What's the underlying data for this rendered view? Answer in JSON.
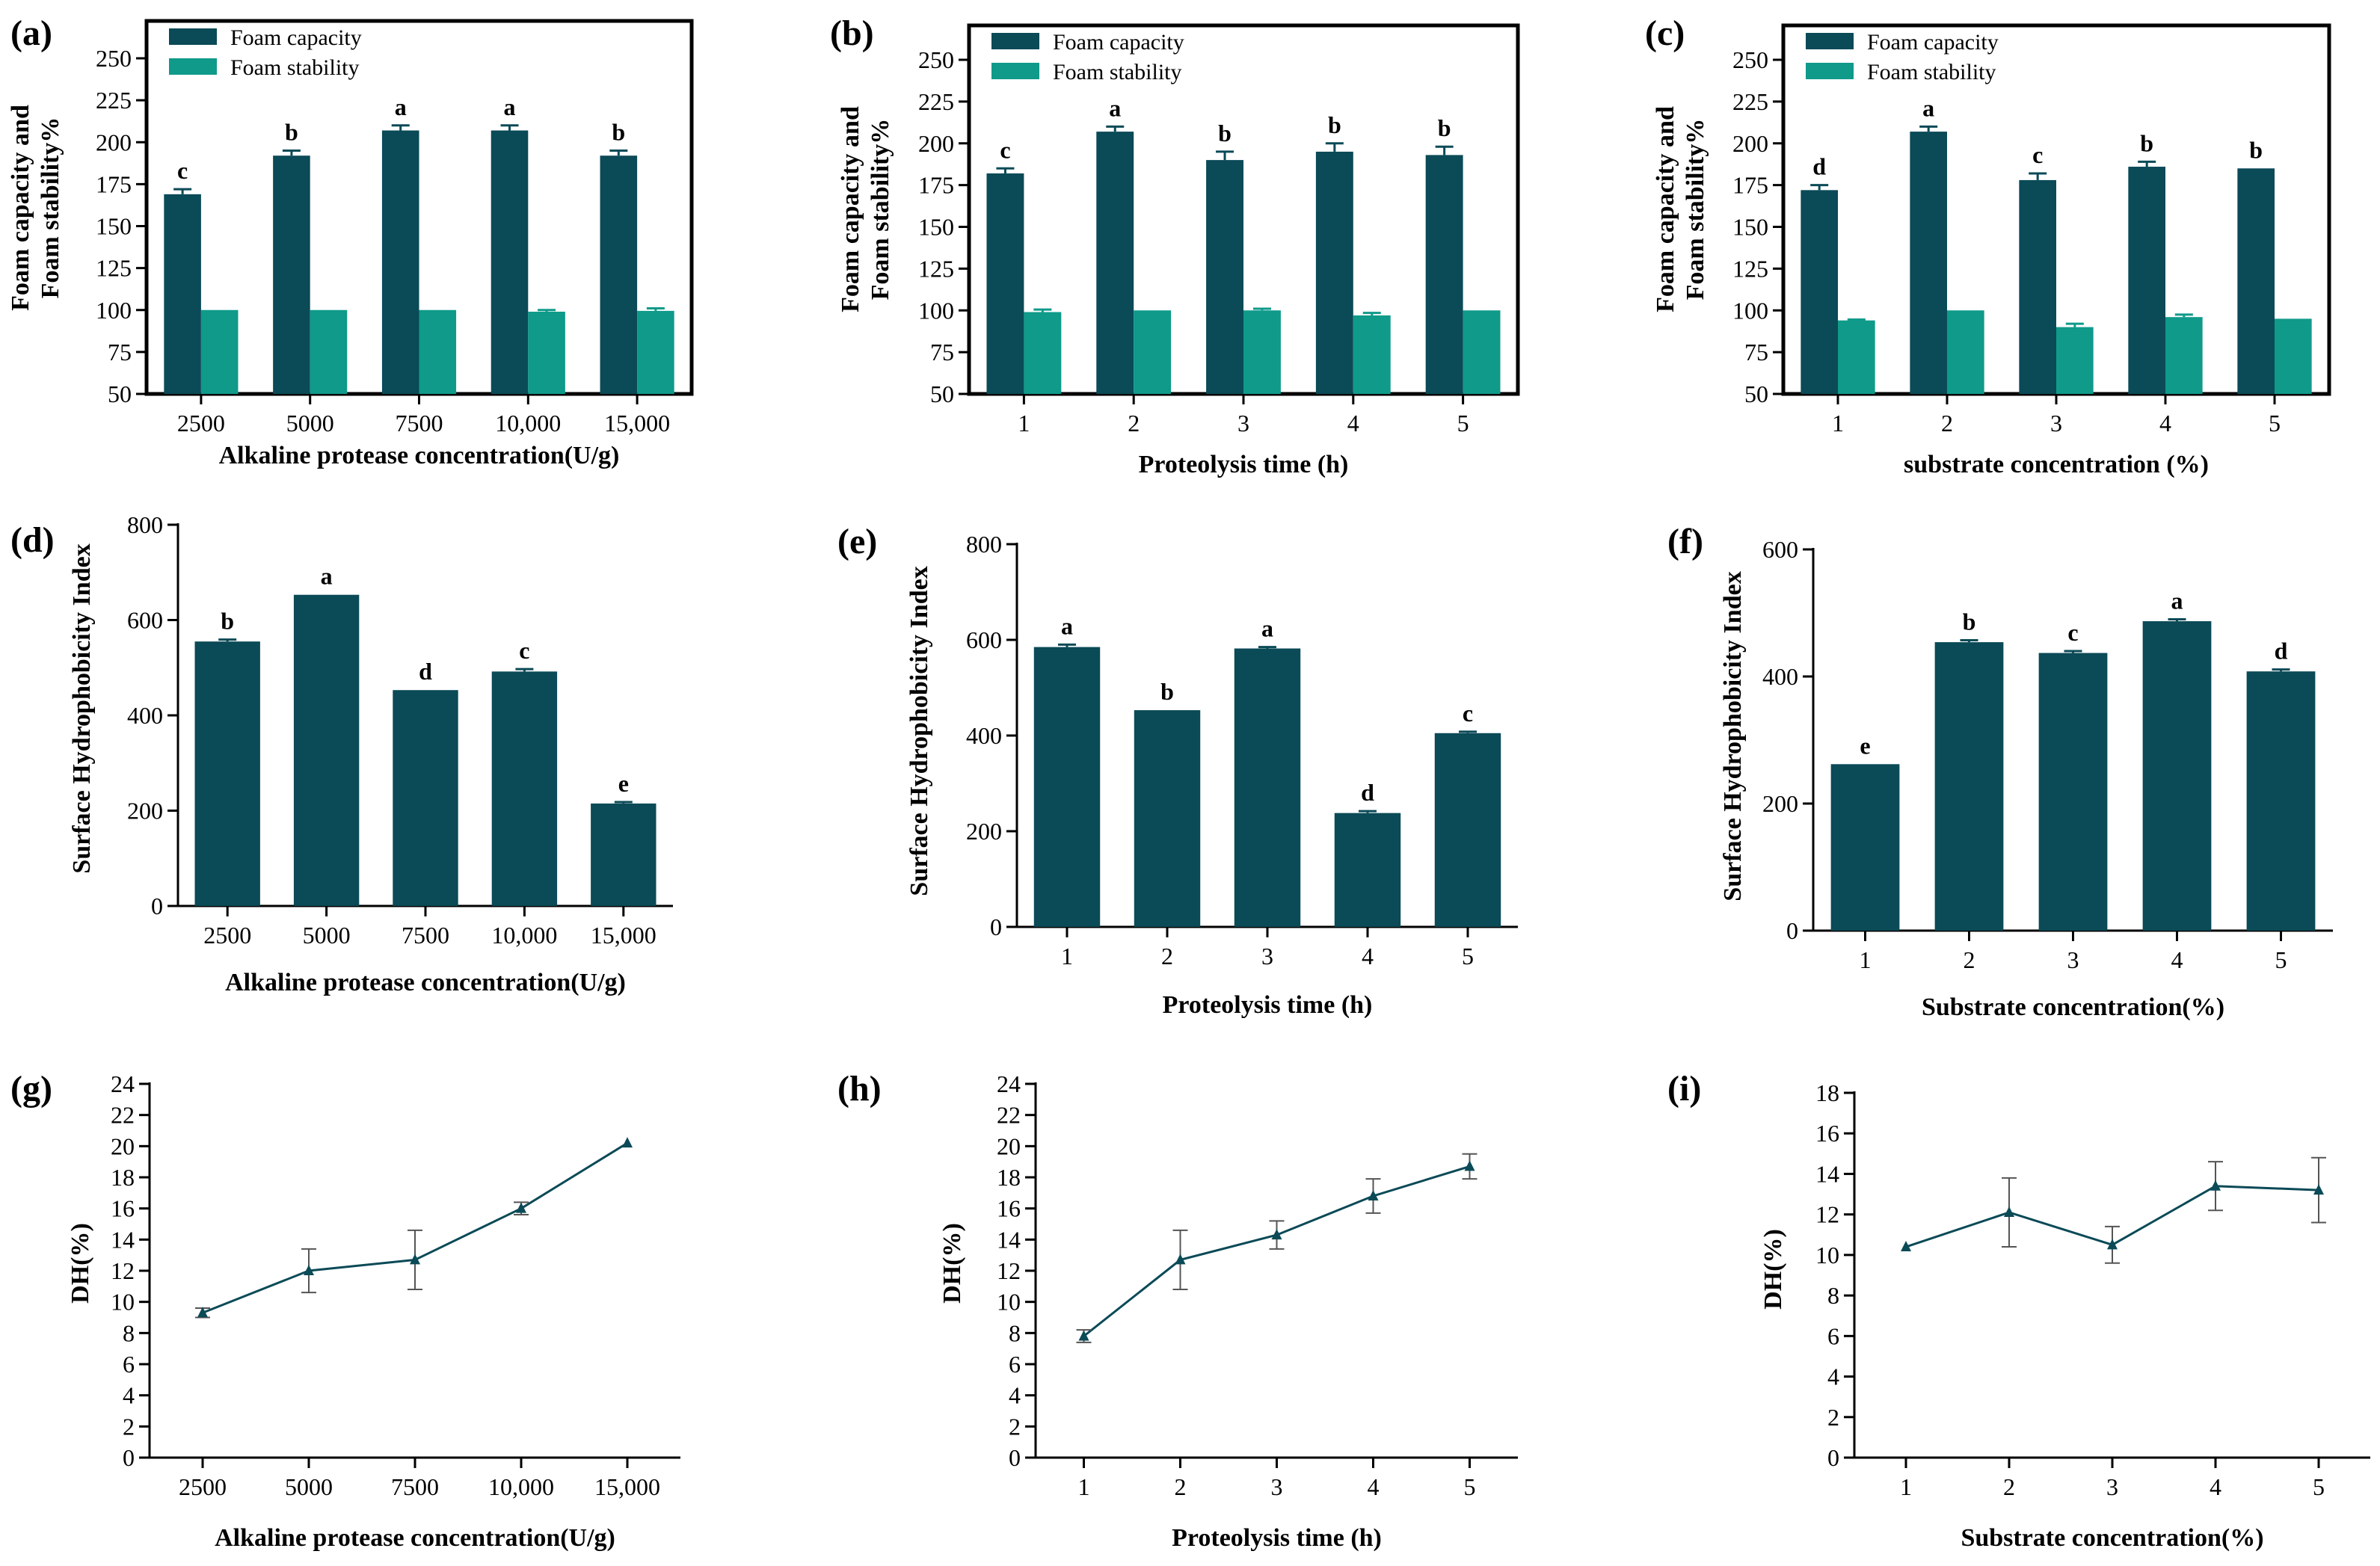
{
  "colors": {
    "capacity": "#0b4a57",
    "stability": "#0f9a8a",
    "line": "#0b4a57"
  },
  "chart_data": [
    {
      "id": "a",
      "panel_label": "(a)",
      "type": "bar",
      "categories": [
        "2500",
        "5000",
        "7500",
        "10,000",
        "15,000"
      ],
      "series": [
        {
          "name": "Foam capacity",
          "values": [
            169,
            192,
            207,
            207,
            192
          ],
          "errors": [
            3,
            3,
            3,
            3,
            3
          ],
          "letters": [
            "c",
            "b",
            "a",
            "a",
            "b"
          ]
        },
        {
          "name": "Foam stability",
          "values": [
            100,
            100,
            100,
            99,
            99.5
          ],
          "errors": [
            0,
            0,
            0,
            1,
            1.5
          ]
        }
      ],
      "xlabel": "Alkaline protease concentration(U/g)",
      "ylabel": [
        "Foam capacity and",
        "Foam stability%"
      ],
      "ylim": [
        50,
        250
      ],
      "yticks": [
        50,
        75,
        100,
        125,
        150,
        175,
        200,
        225,
        250
      ],
      "legend": [
        "Foam capacity",
        "Foam stability"
      ],
      "legend_position": "top-left"
    },
    {
      "id": "b",
      "panel_label": "(b)",
      "type": "bar",
      "categories": [
        "1",
        "2",
        "3",
        "4",
        "5"
      ],
      "series": [
        {
          "name": "Foam capacity",
          "values": [
            182,
            207,
            190,
            195,
            193
          ],
          "errors": [
            3,
            3,
            5,
            5,
            5
          ],
          "letters": [
            "c",
            "a",
            "b",
            "b",
            "b"
          ]
        },
        {
          "name": "Foam stability",
          "values": [
            99,
            100,
            100,
            97,
            100
          ],
          "errors": [
            1.5,
            0,
            1,
            1.5,
            0
          ]
        }
      ],
      "xlabel": "Proteolysis time (h)",
      "ylabel": [
        "Foam capacity and",
        "Foam stability%"
      ],
      "ylim": [
        50,
        250
      ],
      "yticks": [
        50,
        75,
        100,
        125,
        150,
        175,
        200,
        225,
        250
      ],
      "legend": [
        "Foam capacity",
        "Foam stability"
      ],
      "legend_position": "top-left"
    },
    {
      "id": "c",
      "panel_label": "(c)",
      "type": "bar",
      "categories": [
        "1",
        "2",
        "3",
        "4",
        "5"
      ],
      "series": [
        {
          "name": "Foam capacity",
          "values": [
            172,
            207,
            178,
            186,
            185
          ],
          "errors": [
            3,
            3,
            4,
            3,
            0
          ],
          "letters": [
            "d",
            "a",
            "c",
            "b",
            "b"
          ]
        },
        {
          "name": "Foam stability",
          "values": [
            94,
            100,
            90,
            96,
            95
          ],
          "errors": [
            0.5,
            0,
            2,
            1.5,
            0
          ]
        }
      ],
      "xlabel": "substrate concentration (%)",
      "ylabel": [
        "Foam capacity and",
        "Foam stability%"
      ],
      "ylim": [
        50,
        250
      ],
      "yticks": [
        50,
        75,
        100,
        125,
        150,
        175,
        200,
        225,
        250
      ],
      "legend": [
        "Foam capacity",
        "Foam stability"
      ],
      "legend_position": "top-left"
    },
    {
      "id": "d",
      "panel_label": "(d)",
      "type": "bar",
      "categories": [
        "2500",
        "5000",
        "7500",
        "10,000",
        "15,000"
      ],
      "series": [
        {
          "name": "Surface Hydrophobicity Index",
          "values": [
            555,
            653,
            453,
            492,
            215
          ],
          "errors": [
            4,
            0,
            0,
            5,
            3
          ],
          "letters": [
            "b",
            "a",
            "d",
            "c",
            "e"
          ]
        }
      ],
      "xlabel": "Alkaline protease concentration(U/g)",
      "ylabel": [
        "Surface Hydrophobicity Index"
      ],
      "ylim": [
        0,
        800
      ],
      "yticks": [
        0,
        200,
        400,
        600,
        800
      ]
    },
    {
      "id": "e",
      "panel_label": "(e)",
      "type": "bar",
      "categories": [
        "1",
        "2",
        "3",
        "4",
        "5"
      ],
      "series": [
        {
          "name": "Surface Hydrophobicity Index",
          "values": [
            585,
            453,
            582,
            238,
            405
          ],
          "errors": [
            5,
            0,
            3,
            4,
            3
          ],
          "letters": [
            "a",
            "b",
            "a",
            "d",
            "c"
          ]
        }
      ],
      "xlabel": "Proteolysis time (h)",
      "ylabel": [
        "Surface Hydrophobicity Index"
      ],
      "ylim": [
        0,
        800
      ],
      "yticks": [
        0,
        200,
        400,
        600,
        800
      ]
    },
    {
      "id": "f",
      "panel_label": "(f)",
      "type": "bar",
      "categories": [
        "1",
        "2",
        "3",
        "4",
        "5"
      ],
      "series": [
        {
          "name": "Surface Hydrophobicity Index",
          "values": [
            262,
            454,
            437,
            487,
            408
          ],
          "errors": [
            0,
            3,
            3,
            3,
            3
          ],
          "letters": [
            "e",
            "b",
            "c",
            "a",
            "d"
          ]
        }
      ],
      "xlabel": "Substrate concentration(%)",
      "ylabel": [
        "Surface Hydrophobicity Index"
      ],
      "ylim": [
        0,
        600
      ],
      "yticks": [
        0,
        200,
        400,
        600
      ]
    },
    {
      "id": "g",
      "panel_label": "(g)",
      "type": "line",
      "categories": [
        "2500",
        "5000",
        "7500",
        "10,000",
        "15,000"
      ],
      "series": [
        {
          "name": "DH(%)",
          "values": [
            9.3,
            12.0,
            12.7,
            16.0,
            20.2
          ],
          "errors": [
            0.3,
            1.4,
            1.9,
            0.4,
            0.1
          ]
        }
      ],
      "xlabel": "Alkaline protease concentration(U/g)",
      "ylabel": [
        "DH(%)"
      ],
      "ylim": [
        0,
        24
      ],
      "yticks": [
        0,
        2,
        4,
        6,
        8,
        10,
        12,
        14,
        16,
        18,
        20,
        22,
        24
      ]
    },
    {
      "id": "h",
      "panel_label": "(h)",
      "type": "line",
      "categories": [
        "1",
        "2",
        "3",
        "4",
        "5"
      ],
      "series": [
        {
          "name": "DH(%)",
          "values": [
            7.8,
            12.7,
            14.3,
            16.8,
            18.7
          ],
          "errors": [
            0.4,
            1.9,
            0.9,
            1.1,
            0.8
          ]
        }
      ],
      "xlabel": "Proteolysis time (h)",
      "ylabel": [
        "DH(%)"
      ],
      "ylim": [
        0,
        24
      ],
      "yticks": [
        0,
        2,
        4,
        6,
        8,
        10,
        12,
        14,
        16,
        18,
        20,
        22,
        24
      ]
    },
    {
      "id": "i",
      "panel_label": "(i)",
      "type": "line",
      "categories": [
        "1",
        "2",
        "3",
        "4",
        "5"
      ],
      "series": [
        {
          "name": "DH(%)",
          "values": [
            10.4,
            12.1,
            10.5,
            13.4,
            13.2
          ],
          "errors": [
            0.15,
            1.7,
            0.9,
            1.2,
            1.6
          ]
        }
      ],
      "xlabel": "Substrate concentration(%)",
      "ylabel": [
        "DH(%)"
      ],
      "ylim": [
        0,
        18
      ],
      "yticks": [
        0,
        2,
        4,
        6,
        8,
        10,
        12,
        14,
        16,
        18
      ]
    }
  ]
}
